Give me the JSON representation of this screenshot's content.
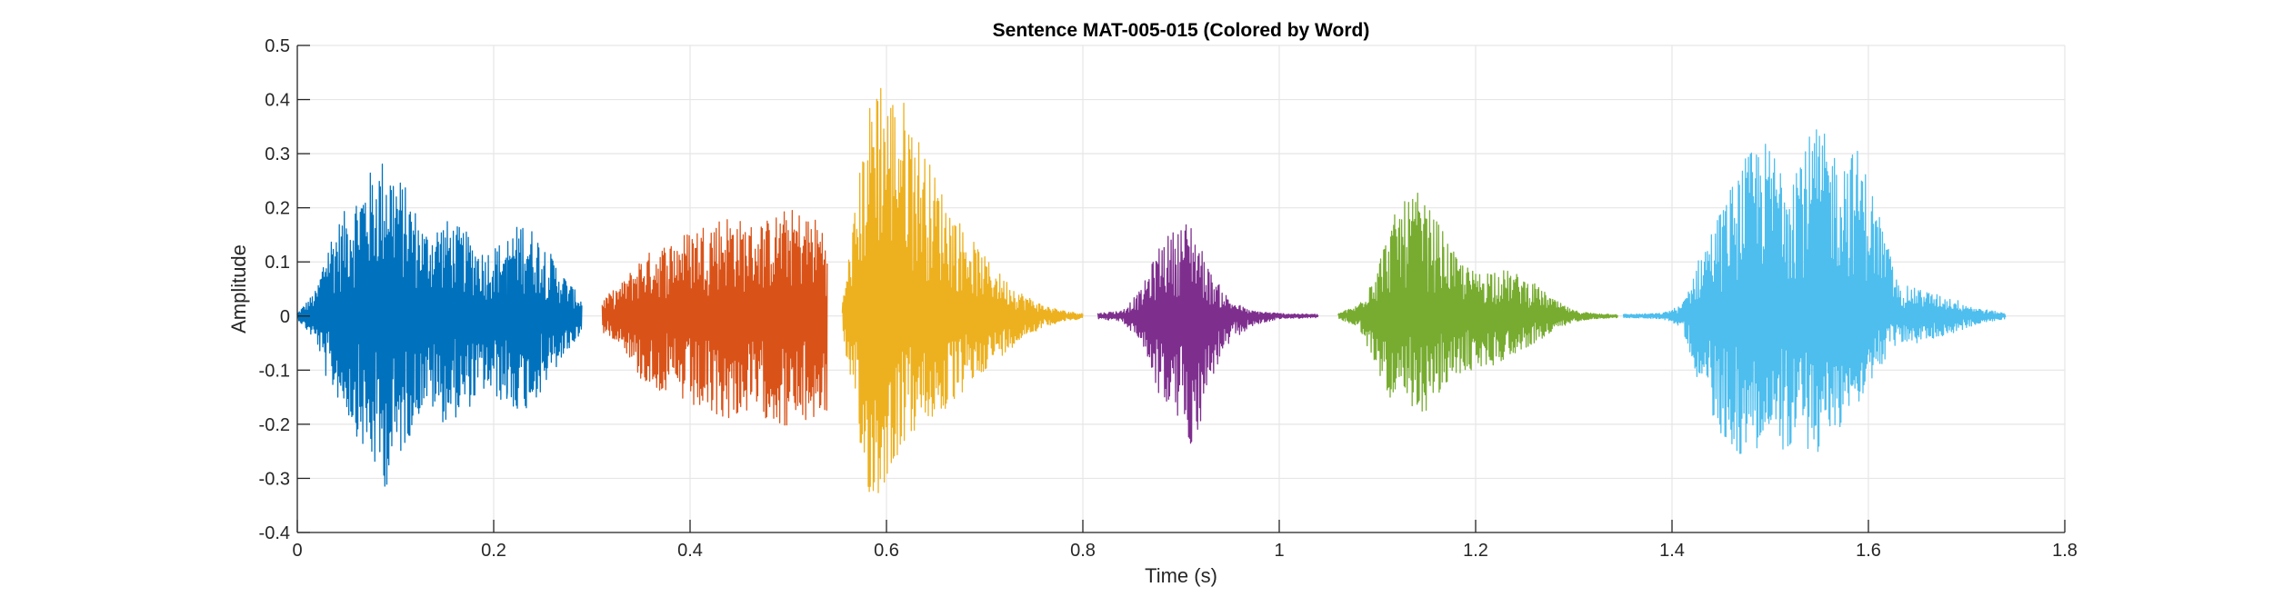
{
  "chart_data": {
    "type": "line",
    "title": "Sentence MAT-005-015 (Colored by Word)",
    "xlabel": "Time (s)",
    "ylabel": "Amplitude",
    "xlim": [
      0,
      1.8
    ],
    "ylim": [
      -0.4,
      0.5
    ],
    "xticks": [
      0,
      0.2,
      0.4,
      0.6,
      0.8,
      1,
      1.2,
      1.4,
      1.6,
      1.8
    ],
    "xtick_labels": [
      "0",
      "0.2",
      "0.4",
      "0.6",
      "0.8",
      "1",
      "1.2",
      "1.4",
      "1.6",
      "1.8"
    ],
    "yticks": [
      -0.4,
      -0.3,
      -0.2,
      -0.1,
      0,
      0.1,
      0.2,
      0.3,
      0.4,
      0.5
    ],
    "ytick_labels": [
      "-0.4",
      "-0.3",
      "-0.2",
      "-0.1",
      "0",
      "0.1",
      "0.2",
      "0.3",
      "0.4",
      "0.5"
    ],
    "grid": true,
    "series": [
      {
        "color": "#0072BD",
        "x": [
          0.0,
          0.02,
          0.03,
          0.05,
          0.07,
          0.09,
          0.11,
          0.13,
          0.15,
          0.17,
          0.19,
          0.21,
          0.23,
          0.25,
          0.27,
          0.29
        ],
        "y_max": [
          0.005,
          0.05,
          0.14,
          0.2,
          0.26,
          0.3,
          0.24,
          0.16,
          0.18,
          0.16,
          0.12,
          0.14,
          0.18,
          0.14,
          0.08,
          0.03
        ],
        "y_min": [
          -0.005,
          -0.05,
          -0.12,
          -0.18,
          -0.26,
          -0.32,
          -0.24,
          -0.16,
          -0.2,
          -0.18,
          -0.14,
          -0.16,
          -0.18,
          -0.14,
          -0.08,
          -0.03
        ]
      },
      {
        "color": "#D95319",
        "x": [
          0.31,
          0.33,
          0.35,
          0.38,
          0.4,
          0.42,
          0.44,
          0.46,
          0.48,
          0.5,
          0.52,
          0.54
        ],
        "y_max": [
          0.03,
          0.06,
          0.11,
          0.14,
          0.16,
          0.18,
          0.19,
          0.17,
          0.18,
          0.2,
          0.19,
          0.17
        ],
        "y_min": [
          -0.03,
          -0.05,
          -0.12,
          -0.15,
          -0.17,
          -0.19,
          -0.19,
          -0.18,
          -0.19,
          -0.21,
          -0.2,
          -0.18
        ]
      },
      {
        "color": "#EDB120",
        "x": [
          0.555,
          0.575,
          0.59,
          0.6,
          0.62,
          0.64,
          0.66,
          0.68,
          0.7,
          0.72,
          0.74,
          0.76,
          0.78,
          0.8
        ],
        "y_max": [
          0.02,
          0.3,
          0.48,
          0.42,
          0.4,
          0.3,
          0.22,
          0.16,
          0.11,
          0.07,
          0.04,
          0.02,
          0.01,
          0.005
        ],
        "y_min": [
          -0.02,
          -0.3,
          -0.36,
          -0.3,
          -0.23,
          -0.2,
          -0.18,
          -0.14,
          -0.1,
          -0.07,
          -0.04,
          -0.02,
          -0.01,
          -0.005
        ]
      },
      {
        "color": "#7E2F8E",
        "x": [
          0.815,
          0.84,
          0.86,
          0.88,
          0.9,
          0.91,
          0.92,
          0.93,
          0.95,
          0.97,
          1.0,
          1.04
        ],
        "y_max": [
          0.005,
          0.01,
          0.05,
          0.14,
          0.17,
          0.18,
          0.13,
          0.08,
          0.03,
          0.01,
          0.005,
          0.003
        ],
        "y_min": [
          -0.005,
          -0.01,
          -0.05,
          -0.16,
          -0.2,
          -0.24,
          -0.2,
          -0.12,
          -0.05,
          -0.02,
          -0.005,
          -0.003
        ]
      },
      {
        "color": "#77AC30",
        "x": [
          1.06,
          1.08,
          1.1,
          1.12,
          1.14,
          1.16,
          1.18,
          1.2,
          1.22,
          1.24,
          1.26,
          1.28,
          1.3,
          1.32,
          1.345
        ],
        "y_max": [
          0.005,
          0.02,
          0.1,
          0.2,
          0.23,
          0.18,
          0.11,
          0.08,
          0.09,
          0.08,
          0.06,
          0.03,
          0.01,
          0.005,
          0.003
        ],
        "y_min": [
          -0.005,
          -0.02,
          -0.1,
          -0.18,
          -0.19,
          -0.16,
          -0.11,
          -0.1,
          -0.09,
          -0.07,
          -0.05,
          -0.03,
          -0.01,
          -0.005,
          -0.003
        ]
      },
      {
        "color": "#4DBEEE",
        "x": [
          1.35,
          1.39,
          1.41,
          1.43,
          1.45,
          1.47,
          1.49,
          1.51,
          1.53,
          1.55,
          1.57,
          1.59,
          1.61,
          1.63,
          1.65,
          1.67,
          1.69,
          1.71,
          1.74
        ],
        "y_max": [
          0.003,
          0.005,
          0.02,
          0.12,
          0.2,
          0.28,
          0.33,
          0.3,
          0.32,
          0.35,
          0.3,
          0.31,
          0.2,
          0.06,
          0.05,
          0.04,
          0.03,
          0.015,
          0.005
        ],
        "y_min": [
          -0.003,
          -0.005,
          -0.02,
          -0.14,
          -0.22,
          -0.26,
          -0.24,
          -0.25,
          -0.24,
          -0.26,
          -0.21,
          -0.16,
          -0.1,
          -0.05,
          -0.05,
          -0.04,
          -0.03,
          -0.015,
          -0.005
        ]
      }
    ]
  }
}
